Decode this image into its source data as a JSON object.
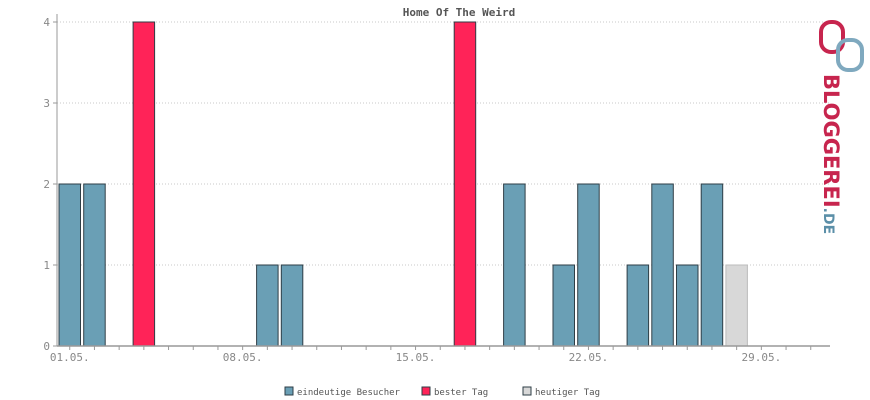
{
  "chart_data": {
    "type": "bar",
    "title": "Home Of The Weird",
    "xlabel": "",
    "ylabel": "",
    "ylim": [
      0,
      4
    ],
    "yticks": [
      0,
      1,
      2,
      3,
      4
    ],
    "x_tick_labels": [
      {
        "day": 1,
        "label": "01.05."
      },
      {
        "day": 8,
        "label": "08.05."
      },
      {
        "day": 15,
        "label": "15.05."
      },
      {
        "day": 22,
        "label": "22.05."
      },
      {
        "day": 29,
        "label": "29.05."
      }
    ],
    "days": [
      1,
      2,
      3,
      4,
      5,
      6,
      7,
      8,
      9,
      10,
      11,
      12,
      13,
      14,
      15,
      16,
      17,
      18,
      19,
      20,
      21,
      22,
      23,
      24,
      25,
      26,
      27,
      28,
      29,
      30,
      31
    ],
    "series": [
      {
        "name": "eindeutige Besucher",
        "color": "#6a9fb5",
        "values": [
          2,
          2,
          0,
          0,
          0,
          0,
          0,
          0,
          1,
          1,
          0,
          0,
          0,
          0,
          0,
          0,
          0,
          0,
          2,
          0,
          1,
          2,
          0,
          1,
          2,
          1,
          2,
          0,
          0,
          0,
          0
        ]
      },
      {
        "name": "bester Tag",
        "color": "#ff2358",
        "values": [
          0,
          0,
          0,
          4,
          0,
          0,
          0,
          0,
          0,
          0,
          0,
          0,
          0,
          0,
          0,
          0,
          4,
          0,
          0,
          0,
          0,
          0,
          0,
          0,
          0,
          0,
          0,
          0,
          0,
          0,
          0
        ]
      },
      {
        "name": "heutiger Tag",
        "color": "#d8d8d8",
        "values": [
          0,
          0,
          0,
          0,
          0,
          0,
          0,
          0,
          0,
          0,
          0,
          0,
          0,
          0,
          0,
          0,
          0,
          0,
          0,
          0,
          0,
          0,
          0,
          0,
          0,
          0,
          0,
          1,
          0,
          0,
          0
        ]
      }
    ],
    "grid": true,
    "legend_position": "bottom"
  },
  "logo": {
    "text_main": "BLOGGEREI",
    "text_suffix": ".DE",
    "color_main": "#c7254e",
    "color_suffix": "#5b8fa8"
  }
}
